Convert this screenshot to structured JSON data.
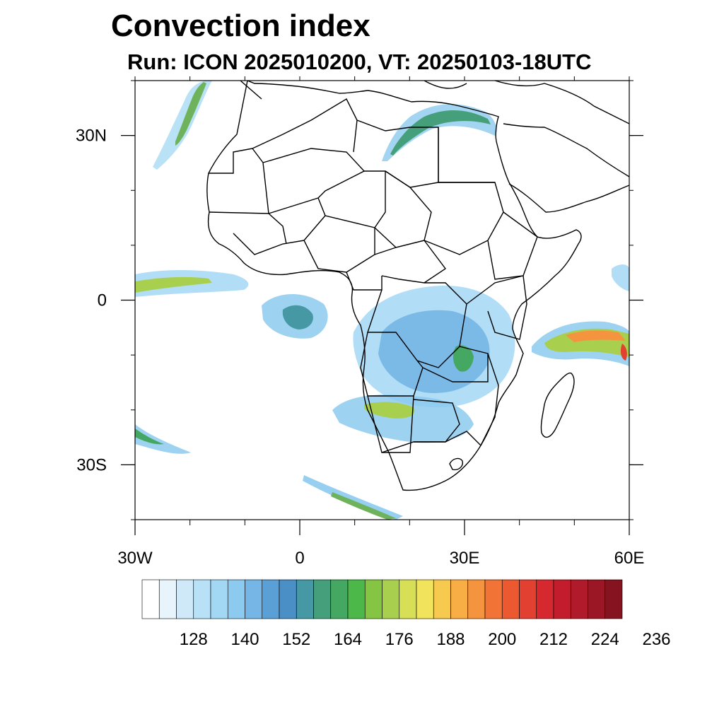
{
  "title": "Convection index",
  "subtitle": "Run: ICON 2025010200,  VT: 20250103-18UTC",
  "map": {
    "region": "Africa",
    "lon_range": [
      -30,
      60
    ],
    "lat_range": [
      -40,
      40
    ],
    "lat_ticks": [
      {
        "value": 30,
        "label": "30N"
      },
      {
        "value": 0,
        "label": "0"
      },
      {
        "value": -30,
        "label": "30S"
      }
    ],
    "lon_ticks": [
      {
        "value": -30,
        "label": "30W"
      },
      {
        "value": 0,
        "label": "0"
      },
      {
        "value": 30,
        "label": "30E"
      },
      {
        "value": 60,
        "label": "60E"
      }
    ]
  },
  "colorbar": {
    "colors": [
      "#ffffff",
      "#e8f4fb",
      "#cfe9f8",
      "#b8e0f6",
      "#a3d8f4",
      "#8ccaef",
      "#76b6e6",
      "#5b9fd7",
      "#4a8fc5",
      "#4598a4",
      "#459f7b",
      "#45a862",
      "#4cb84a",
      "#86c444",
      "#a9cf4f",
      "#d6df56",
      "#f2e35c",
      "#f7c94f",
      "#f8ae45",
      "#f5943e",
      "#f17436",
      "#ec5931",
      "#e24030",
      "#d5292f",
      "#c31d2d",
      "#b01a2a",
      "#9c1726",
      "#861420"
    ],
    "labels": [
      "128",
      "140",
      "152",
      "164",
      "176",
      "188",
      "200",
      "212",
      "224",
      "236"
    ]
  }
}
